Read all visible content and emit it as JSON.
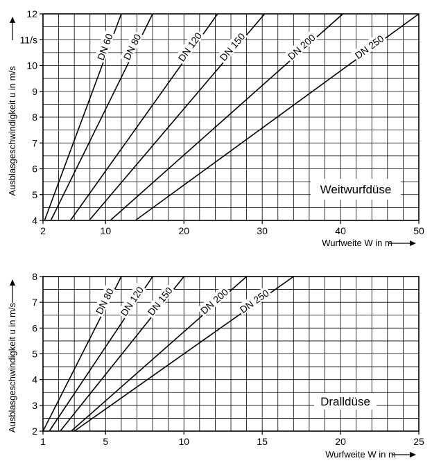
{
  "chart_data": [
    {
      "type": "line",
      "title": "",
      "legend_text": "Weitwurfdüse",
      "xlabel": "Wurfweite W in m",
      "ylabel": "Ausblasgeschwindigkeit u in m/s",
      "xlim": [
        2,
        50
      ],
      "ylim": [
        4,
        12
      ],
      "x_ticks": [
        2,
        10,
        20,
        30,
        40,
        50
      ],
      "y_ticks": [
        4,
        5,
        6,
        7,
        8,
        9,
        10,
        11,
        12
      ],
      "y_tick_labels": [
        "4",
        "5",
        "6",
        "7",
        "8",
        "9",
        "10",
        "11/s",
        "12"
      ],
      "grid_x_step": 2,
      "grid_y_step": 0.5,
      "grid": true,
      "series": [
        {
          "name": "DN 60",
          "x": [
            2.2,
            12.0
          ],
          "y": [
            4,
            12
          ]
        },
        {
          "name": "DN 80",
          "x": [
            3.0,
            16.0
          ],
          "y": [
            4,
            12
          ]
        },
        {
          "name": "DN 120",
          "x": [
            5.5,
            24.3
          ],
          "y": [
            4,
            12
          ]
        },
        {
          "name": "DN 150",
          "x": [
            7.9,
            30.3
          ],
          "y": [
            4,
            12
          ]
        },
        {
          "name": "DN 200",
          "x": [
            10.6,
            40.3
          ],
          "y": [
            4,
            12
          ]
        },
        {
          "name": "DN 250",
          "x": [
            13.8,
            50.0
          ],
          "y": [
            4,
            12
          ]
        }
      ]
    },
    {
      "type": "line",
      "title": "",
      "legend_text": "Dralldüse",
      "xlabel": "Wurfweite W in m",
      "ylabel": "Ausblasgeschwindigkeit u in m/s",
      "xlim": [
        1,
        25
      ],
      "ylim": [
        2,
        8
      ],
      "x_ticks": [
        1,
        5,
        10,
        15,
        20,
        25
      ],
      "y_ticks": [
        2,
        3,
        4,
        5,
        6,
        7,
        8
      ],
      "y_tick_labels": [
        "2",
        "3",
        "4",
        "5",
        "6",
        "7",
        "8"
      ],
      "grid_x_step": 1,
      "grid_y_step": 0.5,
      "grid": true,
      "series": [
        {
          "name": "DN 80",
          "x": [
            1.0,
            6.0
          ],
          "y": [
            2,
            8
          ]
        },
        {
          "name": "DN 120",
          "x": [
            1.4,
            8.0
          ],
          "y": [
            2,
            8
          ]
        },
        {
          "name": "DN 150",
          "x": [
            2.1,
            10.0
          ],
          "y": [
            2,
            8
          ]
        },
        {
          "name": "DN 200",
          "x": [
            2.8,
            14.0
          ],
          "y": [
            2,
            8
          ]
        },
        {
          "name": "DN 250",
          "x": [
            3.0,
            17.0
          ],
          "y": [
            2,
            8
          ]
        }
      ]
    }
  ]
}
